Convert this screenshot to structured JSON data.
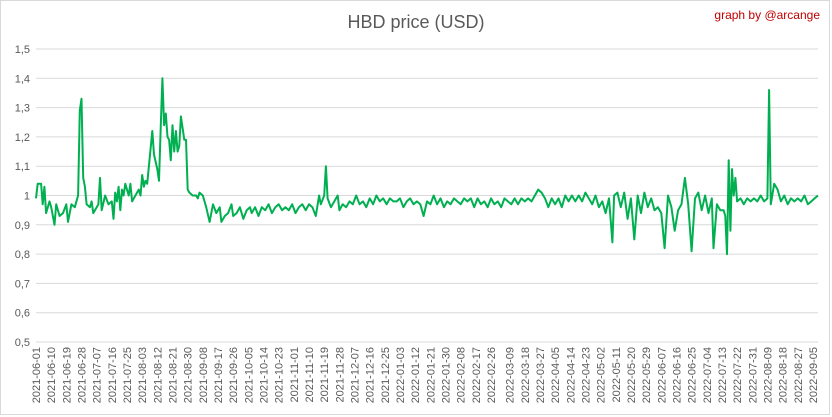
{
  "chart_data": {
    "type": "line",
    "title": "HBD price (USD)",
    "credit": "graph by @arcange",
    "ylim": [
      0.5,
      1.5
    ],
    "yticks": [
      "0,5",
      "0,6",
      "0,7",
      "0,8",
      "0,9",
      "1",
      "1,1",
      "1,2",
      "1,3",
      "1,4",
      "1,5"
    ],
    "grid": true,
    "legend": "none",
    "line_color": "#00b050",
    "x_range": [
      "2021-06-01",
      "2022-09-08"
    ],
    "xticks": [
      "2021-06-01",
      "2021-06-10",
      "2021-06-19",
      "2021-06-28",
      "2021-07-07",
      "2021-07-16",
      "2021-07-25",
      "2021-08-03",
      "2021-08-12",
      "2021-08-21",
      "2021-08-30",
      "2021-09-08",
      "2021-09-17",
      "2021-09-26",
      "2021-10-05",
      "2021-10-14",
      "2021-10-23",
      "2021-11-01",
      "2021-11-10",
      "2021-11-19",
      "2021-11-28",
      "2021-12-07",
      "2021-12-16",
      "2021-12-25",
      "2022-01-03",
      "2022-01-12",
      "2022-01-21",
      "2022-01-30",
      "2022-02-08",
      "2022-02-17",
      "2022-02-26",
      "2022-03-09",
      "2022-03-18",
      "2022-03-27",
      "2022-04-05",
      "2022-04-14",
      "2022-04-23",
      "2022-05-02",
      "2022-05-11",
      "2022-05-20",
      "2022-05-29",
      "2022-06-07",
      "2022-06-16",
      "2022-06-25",
      "2022-07-04",
      "2022-07-13",
      "2022-07-22",
      "2022-07-31",
      "2022-08-09",
      "2022-08-18",
      "2022-08-27",
      "2022-09-05"
    ],
    "points": [
      [
        "2021-06-01",
        0.99
      ],
      [
        "2021-06-02",
        1.04
      ],
      [
        "2021-06-04",
        1.04
      ],
      [
        "2021-06-05",
        0.97
      ],
      [
        "2021-06-06",
        1.03
      ],
      [
        "2021-06-07",
        0.94
      ],
      [
        "2021-06-09",
        0.98
      ],
      [
        "2021-06-10",
        0.96
      ],
      [
        "2021-06-12",
        0.9
      ],
      [
        "2021-06-13",
        0.97
      ],
      [
        "2021-06-15",
        0.93
      ],
      [
        "2021-06-17",
        0.94
      ],
      [
        "2021-06-19",
        0.97
      ],
      [
        "2021-06-20",
        0.91
      ],
      [
        "2021-06-22",
        0.97
      ],
      [
        "2021-06-24",
        0.96
      ],
      [
        "2021-06-26",
        1.0
      ],
      [
        "2021-06-27",
        1.29
      ],
      [
        "2021-06-28",
        1.33
      ],
      [
        "2021-06-29",
        1.06
      ],
      [
        "2021-06-30",
        1.03
      ],
      [
        "2021-07-01",
        0.97
      ],
      [
        "2021-07-03",
        0.96
      ],
      [
        "2021-07-04",
        0.98
      ],
      [
        "2021-07-05",
        0.94
      ],
      [
        "2021-07-07",
        0.96
      ],
      [
        "2021-07-08",
        0.97
      ],
      [
        "2021-07-09",
        1.06
      ],
      [
        "2021-07-10",
        0.95
      ],
      [
        "2021-07-12",
        1.0
      ],
      [
        "2021-07-14",
        0.97
      ],
      [
        "2021-07-16",
        0.98
      ],
      [
        "2021-07-17",
        0.92
      ],
      [
        "2021-07-18",
        1.01
      ],
      [
        "2021-07-19",
        0.98
      ],
      [
        "2021-07-20",
        1.03
      ],
      [
        "2021-07-21",
        0.95
      ],
      [
        "2021-07-22",
        1.02
      ],
      [
        "2021-07-23",
        1.0
      ],
      [
        "2021-07-24",
        1.04
      ],
      [
        "2021-07-25",
        1.02
      ],
      [
        "2021-07-26",
        1.0
      ],
      [
        "2021-07-27",
        1.04
      ],
      [
        "2021-07-28",
        0.98
      ],
      [
        "2021-07-30",
        1.0
      ],
      [
        "2021-08-01",
        1.02
      ],
      [
        "2021-08-02",
        1.0
      ],
      [
        "2021-08-03",
        1.07
      ],
      [
        "2021-08-04",
        1.03
      ],
      [
        "2021-08-05",
        1.05
      ],
      [
        "2021-08-06",
        1.04
      ],
      [
        "2021-08-08",
        1.16
      ],
      [
        "2021-08-09",
        1.22
      ],
      [
        "2021-08-10",
        1.14
      ],
      [
        "2021-08-12",
        1.09
      ],
      [
        "2021-08-13",
        1.05
      ],
      [
        "2021-08-14",
        1.23
      ],
      [
        "2021-08-15",
        1.4
      ],
      [
        "2021-08-16",
        1.24
      ],
      [
        "2021-08-17",
        1.28
      ],
      [
        "2021-08-18",
        1.2
      ],
      [
        "2021-08-19",
        1.19
      ],
      [
        "2021-08-20",
        1.12
      ],
      [
        "2021-08-21",
        1.24
      ],
      [
        "2021-08-22",
        1.15
      ],
      [
        "2021-08-23",
        1.22
      ],
      [
        "2021-08-24",
        1.15
      ],
      [
        "2021-08-25",
        1.17
      ],
      [
        "2021-08-26",
        1.27
      ],
      [
        "2021-08-27",
        1.23
      ],
      [
        "2021-08-28",
        1.19
      ],
      [
        "2021-08-29",
        1.19
      ],
      [
        "2021-08-30",
        1.02
      ],
      [
        "2021-08-31",
        1.01
      ],
      [
        "2021-09-02",
        1.0
      ],
      [
        "2021-09-04",
        1.0
      ],
      [
        "2021-09-05",
        0.99
      ],
      [
        "2021-09-06",
        1.01
      ],
      [
        "2021-09-08",
        1.0
      ],
      [
        "2021-09-10",
        0.96
      ],
      [
        "2021-09-12",
        0.91
      ],
      [
        "2021-09-14",
        0.97
      ],
      [
        "2021-09-16",
        0.94
      ],
      [
        "2021-09-18",
        0.96
      ],
      [
        "2021-09-19",
        0.91
      ],
      [
        "2021-09-21",
        0.93
      ],
      [
        "2021-09-23",
        0.94
      ],
      [
        "2021-09-25",
        0.97
      ],
      [
        "2021-09-26",
        0.93
      ],
      [
        "2021-09-28",
        0.94
      ],
      [
        "2021-09-30",
        0.96
      ],
      [
        "2021-10-02",
        0.92
      ],
      [
        "2021-10-04",
        0.95
      ],
      [
        "2021-10-06",
        0.96
      ],
      [
        "2021-10-07",
        0.94
      ],
      [
        "2021-10-09",
        0.96
      ],
      [
        "2021-10-11",
        0.93
      ],
      [
        "2021-10-13",
        0.96
      ],
      [
        "2021-10-15",
        0.95
      ],
      [
        "2021-10-17",
        0.97
      ],
      [
        "2021-10-19",
        0.94
      ],
      [
        "2021-10-21",
        0.96
      ],
      [
        "2021-10-23",
        0.97
      ],
      [
        "2021-10-25",
        0.95
      ],
      [
        "2021-10-27",
        0.96
      ],
      [
        "2021-10-29",
        0.95
      ],
      [
        "2021-10-31",
        0.97
      ],
      [
        "2021-11-02",
        0.94
      ],
      [
        "2021-11-04",
        0.96
      ],
      [
        "2021-11-06",
        0.97
      ],
      [
        "2021-11-08",
        0.95
      ],
      [
        "2021-11-10",
        0.97
      ],
      [
        "2021-11-12",
        0.96
      ],
      [
        "2021-11-14",
        0.93
      ],
      [
        "2021-11-16",
        1.0
      ],
      [
        "2021-11-17",
        0.97
      ],
      [
        "2021-11-19",
        1.0
      ],
      [
        "2021-11-20",
        1.1
      ],
      [
        "2021-11-21",
        0.99
      ],
      [
        "2021-11-23",
        0.96
      ],
      [
        "2021-11-25",
        0.98
      ],
      [
        "2021-11-27",
        1.0
      ],
      [
        "2021-11-28",
        0.95
      ],
      [
        "2021-11-30",
        0.97
      ],
      [
        "2021-12-02",
        0.96
      ],
      [
        "2021-12-04",
        0.98
      ],
      [
        "2021-12-06",
        0.97
      ],
      [
        "2021-12-08",
        1.0
      ],
      [
        "2021-12-10",
        0.97
      ],
      [
        "2021-12-12",
        0.98
      ],
      [
        "2021-12-14",
        0.96
      ],
      [
        "2021-12-16",
        0.99
      ],
      [
        "2021-12-18",
        0.97
      ],
      [
        "2021-12-20",
        1.0
      ],
      [
        "2021-12-22",
        0.98
      ],
      [
        "2021-12-24",
        0.99
      ],
      [
        "2021-12-26",
        0.97
      ],
      [
        "2021-12-28",
        0.99
      ],
      [
        "2021-12-30",
        0.98
      ],
      [
        "2022-01-01",
        0.98
      ],
      [
        "2022-01-03",
        0.99
      ],
      [
        "2022-01-05",
        0.96
      ],
      [
        "2022-01-07",
        0.98
      ],
      [
        "2022-01-09",
        0.99
      ],
      [
        "2022-01-11",
        0.97
      ],
      [
        "2022-01-13",
        0.98
      ],
      [
        "2022-01-15",
        0.97
      ],
      [
        "2022-01-17",
        0.93
      ],
      [
        "2022-01-19",
        0.98
      ],
      [
        "2022-01-21",
        0.97
      ],
      [
        "2022-01-23",
        1.0
      ],
      [
        "2022-01-25",
        0.97
      ],
      [
        "2022-01-27",
        0.99
      ],
      [
        "2022-01-29",
        0.96
      ],
      [
        "2022-01-31",
        0.98
      ],
      [
        "2022-02-02",
        0.97
      ],
      [
        "2022-02-04",
        0.99
      ],
      [
        "2022-02-06",
        0.98
      ],
      [
        "2022-02-08",
        0.97
      ],
      [
        "2022-02-10",
        0.99
      ],
      [
        "2022-02-12",
        0.98
      ],
      [
        "2022-02-14",
        0.99
      ],
      [
        "2022-02-16",
        0.96
      ],
      [
        "2022-02-18",
        0.99
      ],
      [
        "2022-02-20",
        0.97
      ],
      [
        "2022-02-22",
        0.98
      ],
      [
        "2022-02-24",
        0.96
      ],
      [
        "2022-02-26",
        0.99
      ],
      [
        "2022-02-28",
        0.97
      ],
      [
        "2022-03-02",
        0.98
      ],
      [
        "2022-03-04",
        0.96
      ],
      [
        "2022-03-06",
        0.99
      ],
      [
        "2022-03-08",
        0.98
      ],
      [
        "2022-03-10",
        0.97
      ],
      [
        "2022-03-12",
        0.99
      ],
      [
        "2022-03-14",
        0.97
      ],
      [
        "2022-03-16",
        0.99
      ],
      [
        "2022-03-18",
        0.98
      ],
      [
        "2022-03-20",
        0.99
      ],
      [
        "2022-03-22",
        0.98
      ],
      [
        "2022-03-24",
        1.0
      ],
      [
        "2022-03-26",
        1.02
      ],
      [
        "2022-03-28",
        1.01
      ],
      [
        "2022-03-30",
        0.99
      ],
      [
        "2022-04-01",
        0.96
      ],
      [
        "2022-04-03",
        0.99
      ],
      [
        "2022-04-05",
        0.97
      ],
      [
        "2022-04-07",
        0.99
      ],
      [
        "2022-04-09",
        0.96
      ],
      [
        "2022-04-11",
        1.0
      ],
      [
        "2022-04-13",
        0.98
      ],
      [
        "2022-04-15",
        1.0
      ],
      [
        "2022-04-17",
        0.98
      ],
      [
        "2022-04-19",
        1.0
      ],
      [
        "2022-04-21",
        0.98
      ],
      [
        "2022-04-23",
        1.01
      ],
      [
        "2022-04-25",
        0.99
      ],
      [
        "2022-04-27",
        0.97
      ],
      [
        "2022-04-29",
        1.0
      ],
      [
        "2022-05-01",
        0.96
      ],
      [
        "2022-05-03",
        0.98
      ],
      [
        "2022-05-05",
        0.94
      ],
      [
        "2022-05-07",
        0.99
      ],
      [
        "2022-05-09",
        0.84
      ],
      [
        "2022-05-10",
        1.0
      ],
      [
        "2022-05-12",
        1.01
      ],
      [
        "2022-05-14",
        0.96
      ],
      [
        "2022-05-16",
        1.01
      ],
      [
        "2022-05-18",
        0.92
      ],
      [
        "2022-05-20",
        0.99
      ],
      [
        "2022-05-22",
        0.85
      ],
      [
        "2022-05-24",
        1.0
      ],
      [
        "2022-05-26",
        0.94
      ],
      [
        "2022-05-28",
        1.01
      ],
      [
        "2022-05-30",
        0.96
      ],
      [
        "2022-06-01",
        0.99
      ],
      [
        "2022-06-03",
        0.95
      ],
      [
        "2022-06-05",
        0.96
      ],
      [
        "2022-06-07",
        0.94
      ],
      [
        "2022-06-09",
        0.82
      ],
      [
        "2022-06-11",
        1.0
      ],
      [
        "2022-06-13",
        0.96
      ],
      [
        "2022-06-15",
        0.88
      ],
      [
        "2022-06-17",
        0.95
      ],
      [
        "2022-06-19",
        0.97
      ],
      [
        "2022-06-21",
        1.06
      ],
      [
        "2022-06-23",
        0.97
      ],
      [
        "2022-06-25",
        0.81
      ],
      [
        "2022-06-27",
        0.99
      ],
      [
        "2022-06-29",
        1.01
      ],
      [
        "2022-07-01",
        0.95
      ],
      [
        "2022-07-03",
        1.0
      ],
      [
        "2022-07-05",
        0.94
      ],
      [
        "2022-07-07",
        0.99
      ],
      [
        "2022-07-08",
        0.82
      ],
      [
        "2022-07-10",
        0.97
      ],
      [
        "2022-07-12",
        0.95
      ],
      [
        "2022-07-14",
        0.95
      ],
      [
        "2022-07-15",
        0.93
      ],
      [
        "2022-07-16",
        0.8
      ],
      [
        "2022-07-17",
        1.12
      ],
      [
        "2022-07-18",
        0.88
      ],
      [
        "2022-07-19",
        1.09
      ],
      [
        "2022-07-20",
        1.0
      ],
      [
        "2022-07-21",
        1.06
      ],
      [
        "2022-07-22",
        0.98
      ],
      [
        "2022-07-24",
        0.99
      ],
      [
        "2022-07-26",
        0.97
      ],
      [
        "2022-07-28",
        0.99
      ],
      [
        "2022-07-30",
        0.98
      ],
      [
        "2022-08-01",
        0.99
      ],
      [
        "2022-08-03",
        0.98
      ],
      [
        "2022-08-05",
        1.0
      ],
      [
        "2022-08-07",
        0.98
      ],
      [
        "2022-08-09",
        0.99
      ],
      [
        "2022-08-10",
        1.36
      ],
      [
        "2022-08-11",
        0.97
      ],
      [
        "2022-08-13",
        1.04
      ],
      [
        "2022-08-15",
        1.02
      ],
      [
        "2022-08-17",
        0.98
      ],
      [
        "2022-08-19",
        1.0
      ],
      [
        "2022-08-21",
        0.97
      ],
      [
        "2022-08-23",
        0.99
      ],
      [
        "2022-08-25",
        0.98
      ],
      [
        "2022-08-27",
        0.99
      ],
      [
        "2022-08-29",
        0.98
      ],
      [
        "2022-08-31",
        1.0
      ],
      [
        "2022-09-02",
        0.97
      ],
      [
        "2022-09-04",
        0.98
      ],
      [
        "2022-09-06",
        0.99
      ],
      [
        "2022-09-08",
        1.0
      ]
    ]
  }
}
